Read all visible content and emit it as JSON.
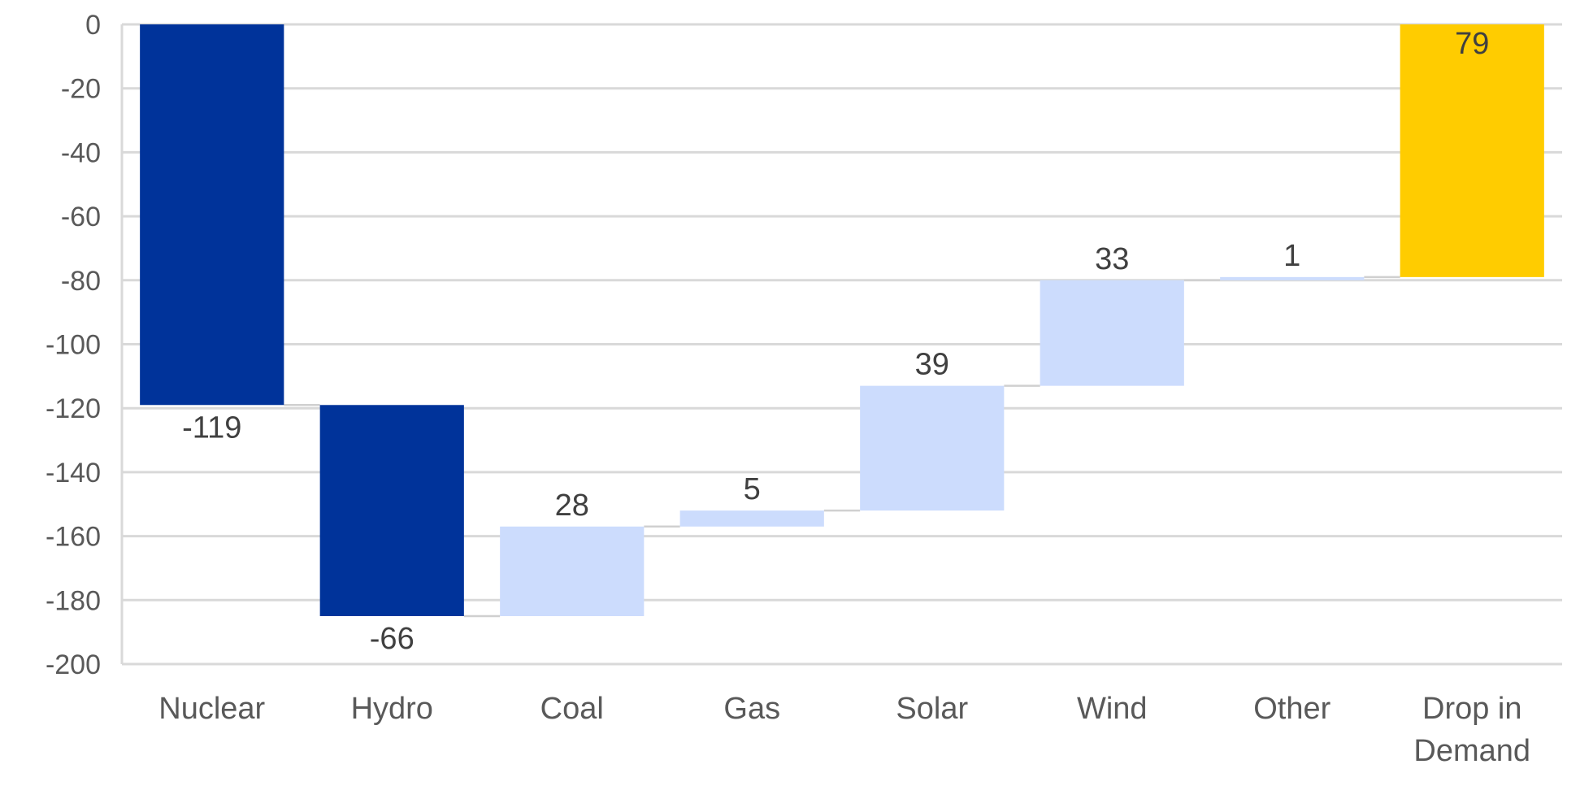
{
  "chart_data": {
    "type": "bar",
    "subtype": "waterfall",
    "title": "",
    "xlabel": "",
    "ylabel": "",
    "ylim": [
      -200,
      0
    ],
    "yticks": [
      0,
      -20,
      -40,
      -60,
      -80,
      -100,
      -120,
      -140,
      -160,
      -180,
      -200
    ],
    "grid": true,
    "legend": "none",
    "categories": [
      "Nuclear",
      "Hydro",
      "Coal",
      "Gas",
      "Solar",
      "Wind",
      "Other",
      "Drop in Demand"
    ],
    "values": [
      -119,
      -66,
      28,
      5,
      39,
      33,
      1,
      79
    ],
    "data_labels": [
      "-119",
      "-66",
      "28",
      "5",
      "39",
      "33",
      "1",
      "79"
    ],
    "kinds": [
      "decrease",
      "decrease",
      "increase",
      "increase",
      "increase",
      "increase",
      "increase",
      "total"
    ],
    "colors": {
      "decrease": "#00339a",
      "increase": "#ccdcfd",
      "total": "#ffcc00"
    }
  }
}
